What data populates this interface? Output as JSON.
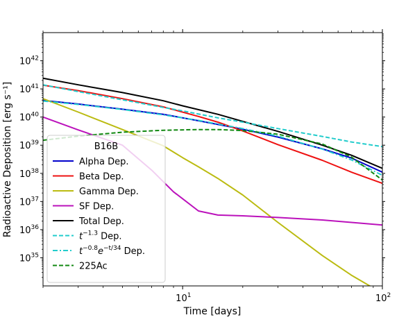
{
  "chart_data": {
    "type": "line",
    "xlabel": "Time [days]",
    "ylabel": "Radioactive Deposition [erg s⁻¹]",
    "xscale": "log",
    "yscale": "log",
    "xlim": [
      2,
      100
    ],
    "ylim": [
      1e+34,
      1e+43
    ],
    "x_tick_labels": [
      {
        "value": 10,
        "mant": "10",
        "exp": "1"
      },
      {
        "value": 100,
        "mant": "10",
        "exp": "2"
      }
    ],
    "y_tick_labels": [
      {
        "value": 1e+35,
        "mant": "10",
        "exp": "35"
      },
      {
        "value": 1e+36,
        "mant": "10",
        "exp": "36"
      },
      {
        "value": 1e+37,
        "mant": "10",
        "exp": "37"
      },
      {
        "value": 1e+38,
        "mant": "10",
        "exp": "38"
      },
      {
        "value": 1e+39,
        "mant": "10",
        "exp": "39"
      },
      {
        "value": 1e+40,
        "mant": "10",
        "exp": "40"
      },
      {
        "value": 1e+41,
        "mant": "10",
        "exp": "41"
      },
      {
        "value": 1e+42,
        "mant": "10",
        "exp": "42"
      }
    ],
    "legend": {
      "title": "B16B",
      "position": "lower left"
    },
    "series": [
      {
        "name": "Alpha Dep.",
        "color": "#0000cc",
        "dash": "solid",
        "points": [
          [
            2,
            3.9e+40
          ],
          [
            3,
            2.9e+40
          ],
          [
            5,
            1.9e+40
          ],
          [
            8,
            1.25e+40
          ],
          [
            12,
            7.4e+39
          ],
          [
            20,
            3.7e+39
          ],
          [
            30,
            1.95e+39
          ],
          [
            50,
            7.4e+38
          ],
          [
            70,
            3.5e+38
          ],
          [
            100,
            1.1e+38
          ]
        ]
      },
      {
        "name": "Beta Dep.",
        "color": "#ee1111",
        "dash": "solid",
        "points": [
          [
            2,
            1.35e+41
          ],
          [
            3,
            8.7e+40
          ],
          [
            5,
            4.5e+40
          ],
          [
            8,
            2.3e+40
          ],
          [
            12,
            1.05e+40
          ],
          [
            15,
            6.6e+39
          ],
          [
            20,
            3.2e+39
          ],
          [
            30,
            1.05e+39
          ],
          [
            50,
            2.9e+38
          ],
          [
            70,
            1.1e+38
          ],
          [
            100,
            4.4e+37
          ]
        ]
      },
      {
        "name": "Gamma Dep.",
        "color": "#bbbb11",
        "dash": "solid",
        "points": [
          [
            2,
            4.5e+40
          ],
          [
            3,
            1.5e+40
          ],
          [
            5,
            3.6e+39
          ],
          [
            8,
            9.5e+38
          ],
          [
            10,
            3.6e+38
          ],
          [
            12,
            1.7e+38
          ],
          [
            15,
            6.6e+37
          ],
          [
            20,
            1.7e+37
          ],
          [
            30,
            1.8e+36
          ],
          [
            50,
            1.2e+35
          ],
          [
            70,
            2.4e+34
          ],
          [
            90,
            8.5e+33
          ]
        ]
      },
      {
        "name": "SF Dep.",
        "color": "#bb11bb",
        "dash": "solid",
        "points": [
          [
            2,
            1e+40
          ],
          [
            3,
            3.5e+39
          ],
          [
            5,
            1e+39
          ],
          [
            7,
            1.3e+38
          ],
          [
            9,
            2.2e+37
          ],
          [
            10,
            1.25e+37
          ],
          [
            12,
            4.6e+36
          ],
          [
            15,
            3.3e+36
          ],
          [
            20,
            3.1e+36
          ],
          [
            30,
            2.7e+36
          ],
          [
            50,
            2.2e+36
          ],
          [
            70,
            1.8e+36
          ],
          [
            100,
            1.45e+36
          ]
        ]
      },
      {
        "name": "Total Dep.",
        "color": "#000000",
        "dash": "solid",
        "points": [
          [
            2,
            2.4e+41
          ],
          [
            3,
            1.4e+41
          ],
          [
            5,
            7.4e+40
          ],
          [
            8,
            3.8e+40
          ],
          [
            10,
            2.5e+40
          ],
          [
            15,
            1.25e+40
          ],
          [
            20,
            7e+39
          ],
          [
            30,
            3.1e+39
          ],
          [
            50,
            1e+39
          ],
          [
            70,
            4.4e+38
          ],
          [
            100,
            1.5e+38
          ]
        ]
      },
      {
        "name": "t^{-1.3} Dep.",
        "label_html": [
          "t",
          "−1.3",
          " Dep."
        ],
        "color": "#22cccc",
        "dash": "dashed",
        "points": [
          [
            2,
            1.4e+41
          ],
          [
            3,
            8e+40
          ],
          [
            5,
            4.1e+40
          ],
          [
            8,
            2.2e+40
          ],
          [
            10,
            1.65e+40
          ],
          [
            15,
            9.4e+39
          ],
          [
            20,
            6.6e+39
          ],
          [
            30,
            3.9e+39
          ],
          [
            50,
            2.05e+39
          ],
          [
            70,
            1.3e+39
          ],
          [
            100,
            8.9e+38
          ]
        ]
      },
      {
        "name": "t^{-0.8}e^{-t/34} Dep.",
        "label_html": [
          "t",
          "−0.8",
          "e",
          "−t/34",
          " Dep."
        ],
        "color": "#22cccc",
        "dash": "dashdot",
        "points": [
          [
            2,
            3.7e+40
          ],
          [
            3,
            2.8e+40
          ],
          [
            5,
            1.85e+40
          ],
          [
            8,
            1.2e+40
          ],
          [
            12,
            7.6e+39
          ],
          [
            20,
            3.9e+39
          ],
          [
            30,
            2.1e+39
          ],
          [
            50,
            7.3e+38
          ],
          [
            70,
            3e+38
          ],
          [
            100,
            8.5e+37
          ]
        ]
      },
      {
        "name": "225Ac",
        "color": "#118811",
        "dash": "dashed",
        "points": [
          [
            2,
            1.5e+39
          ],
          [
            3,
            2.1e+39
          ],
          [
            5,
            2.9e+39
          ],
          [
            8,
            3.4e+39
          ],
          [
            12,
            3.6e+39
          ],
          [
            15,
            3.6e+39
          ],
          [
            20,
            3.3e+39
          ],
          [
            30,
            2.45e+39
          ],
          [
            50,
            1.1e+39
          ],
          [
            70,
            3.8e+38
          ],
          [
            100,
            5.8e+37
          ]
        ]
      }
    ]
  }
}
